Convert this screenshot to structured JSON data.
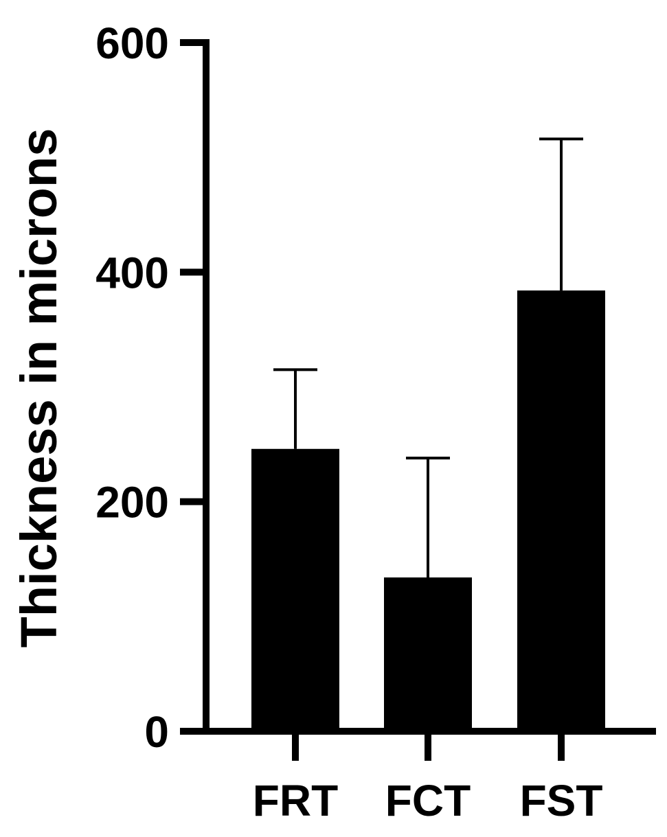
{
  "chart_data": {
    "type": "bar",
    "categories": [
      "FRT",
      "FCT",
      "FST"
    ],
    "values": [
      246,
      134,
      384
    ],
    "error_upper": [
      315,
      238,
      516
    ],
    "ylabel": "Thickness in microns",
    "xlabel": "",
    "ylim": [
      0,
      600
    ],
    "yticks": [
      "0",
      "200",
      "400",
      "600"
    ],
    "grid": false,
    "legend": "none",
    "bar_color": "#000000"
  }
}
